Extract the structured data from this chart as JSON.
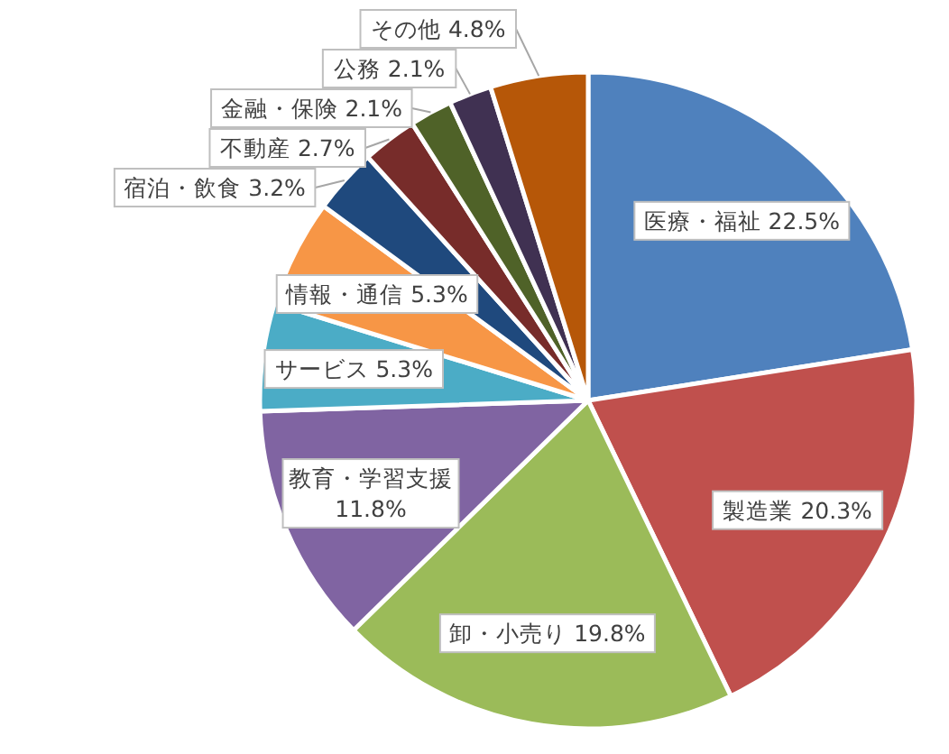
{
  "chart_data": {
    "type": "pie",
    "categories": [
      "医療・福祉",
      "製造業",
      "卸・小売り",
      "教育・学習支援",
      "サービス",
      "情報・通信",
      "宿泊・飲食",
      "不動産",
      "金融・保険",
      "公務",
      "その他"
    ],
    "values": [
      22.5,
      20.3,
      19.8,
      11.8,
      5.3,
      5.3,
      3.2,
      2.7,
      2.1,
      2.1,
      4.8
    ],
    "colors": [
      "#4f81bd",
      "#c0504d",
      "#9bbb59",
      "#8064a2",
      "#4bacc6",
      "#f79646",
      "#1f497d",
      "#772c2a",
      "#4f6228",
      "#403152",
      "#b65708"
    ],
    "value_labels": [
      "22.5%",
      "20.3%",
      "19.8%",
      "11.8%",
      "5.3%",
      "5.3%",
      "3.2%",
      "2.7%",
      "2.1%",
      "2.1%",
      "4.8%"
    ]
  }
}
